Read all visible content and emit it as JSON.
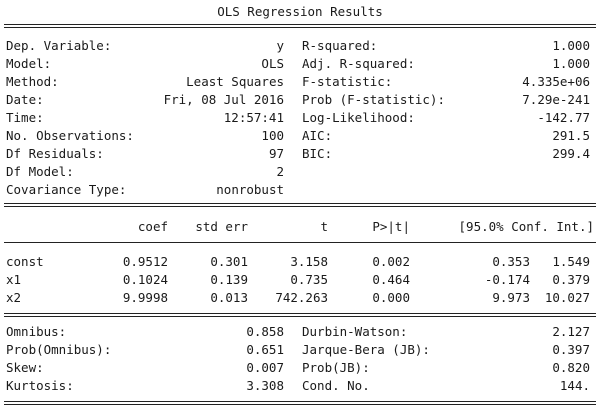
{
  "title": "OLS Regression Results",
  "summary": {
    "left": [
      {
        "label": "Dep. Variable:",
        "value": "y"
      },
      {
        "label": "Model:",
        "value": "OLS"
      },
      {
        "label": "Method:",
        "value": "Least Squares"
      },
      {
        "label": "Date:",
        "value": "Fri, 08 Jul 2016"
      },
      {
        "label": "Time:",
        "value": "12:57:41"
      },
      {
        "label": "No. Observations:",
        "value": "100"
      },
      {
        "label": "Df Residuals:",
        "value": "97"
      },
      {
        "label": "Df Model:",
        "value": "2"
      },
      {
        "label": "Covariance Type:",
        "value": "nonrobust"
      }
    ],
    "right": [
      {
        "label": "R-squared:",
        "value": "1.000"
      },
      {
        "label": "Adj. R-squared:",
        "value": "1.000"
      },
      {
        "label": "F-statistic:",
        "value": "4.335e+06"
      },
      {
        "label": "Prob (F-statistic):",
        "value": "7.29e-241"
      },
      {
        "label": "Log-Likelihood:",
        "value": "-142.77"
      },
      {
        "label": "AIC:",
        "value": "291.5"
      },
      {
        "label": "BIC:",
        "value": "299.4"
      }
    ]
  },
  "coef_table": {
    "headers": [
      "coef",
      "std err",
      "t",
      "P>|t|",
      "[95.0% Conf. Int.]"
    ],
    "rows": [
      {
        "name": "const",
        "coef": "0.9512",
        "std_err": "0.301",
        "t": "3.158",
        "p": "0.002",
        "ci_low": "0.353",
        "ci_high": "1.549"
      },
      {
        "name": "x1",
        "coef": "0.1024",
        "std_err": "0.139",
        "t": "0.735",
        "p": "0.464",
        "ci_low": "-0.174",
        "ci_high": "0.379"
      },
      {
        "name": "x2",
        "coef": "9.9998",
        "std_err": "0.013",
        "t": "742.263",
        "p": "0.000",
        "ci_low": "9.973",
        "ci_high": "10.027"
      }
    ]
  },
  "diagnostics": {
    "left": [
      {
        "label": "Omnibus:",
        "value": "0.858"
      },
      {
        "label": "Prob(Omnibus):",
        "value": "0.651"
      },
      {
        "label": "Skew:",
        "value": "0.007"
      },
      {
        "label": "Kurtosis:",
        "value": "3.308"
      }
    ],
    "right": [
      {
        "label": "Durbin-Watson:",
        "value": "2.127"
      },
      {
        "label": "Jarque-Bera (JB):",
        "value": "0.397"
      },
      {
        "label": "Prob(JB):",
        "value": "0.820"
      },
      {
        "label": "Cond. No.",
        "value": "144."
      }
    ]
  }
}
